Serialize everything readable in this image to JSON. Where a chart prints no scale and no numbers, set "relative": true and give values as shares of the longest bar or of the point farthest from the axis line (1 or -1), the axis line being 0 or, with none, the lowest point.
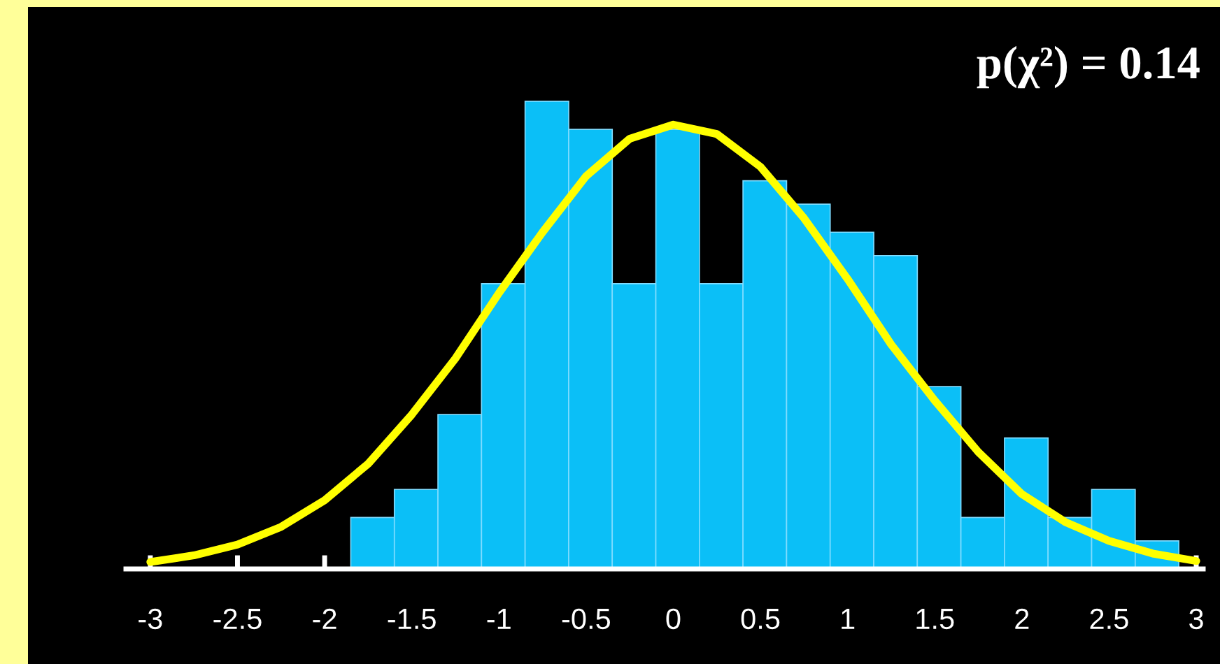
{
  "chart_data": {
    "type": "histogram",
    "relative": true,
    "bins": [
      -1.85,
      -1.6,
      -1.35,
      -1.1,
      -0.85,
      -0.6,
      -0.35,
      -0.1,
      0.15,
      0.4,
      0.65,
      0.9,
      1.15,
      1.4,
      1.65,
      1.9,
      2.15,
      2.4,
      2.65,
      2.9
    ],
    "series": [
      {
        "color": "#0bbff7",
        "values": [
          0.11,
          0.17,
          0.33,
          0.61,
          1,
          0.94,
          0.61,
          0.94,
          0.61,
          0.83,
          0.78,
          0.72,
          0.67,
          0.39,
          0.11,
          0.28,
          0.11,
          0.17,
          0.06
        ]
      },
      {
        "type": "line",
        "color": "#ffff00",
        "x": [
          -3,
          -2.75,
          -2.5,
          -2.25,
          -2,
          -1.75,
          -1.5,
          -1.25,
          -1,
          -0.75,
          -0.5,
          -0.25,
          0,
          0.25,
          0.5,
          0.75,
          1,
          1.25,
          1.5,
          1.75,
          2,
          2.25,
          2.5,
          2.75,
          3
        ],
        "values": [
          0.015,
          0.029,
          0.052,
          0.09,
          0.147,
          0.225,
          0.33,
          0.45,
          0.59,
          0.72,
          0.84,
          0.92,
          0.95,
          0.93,
          0.86,
          0.75,
          0.62,
          0.48,
          0.36,
          0.25,
          0.16,
          0.1,
          0.06,
          0.033,
          0.017
        ]
      }
    ],
    "xlim": [
      -3.14,
      3.04
    ],
    "xticks": [
      -3,
      -2.5,
      -2,
      -1.5,
      -1,
      -0.5,
      0,
      0.5,
      1,
      1.5,
      2,
      2.5,
      3
    ],
    "annotations": [
      "p(χ²) = 0.14"
    ]
  }
}
